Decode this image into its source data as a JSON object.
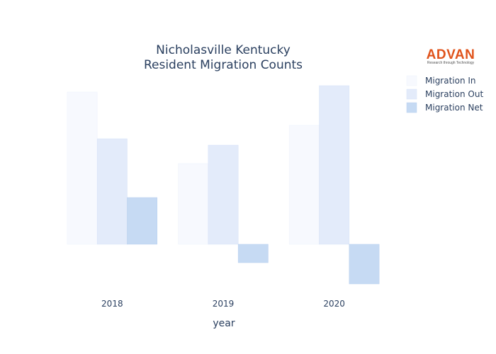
{
  "chart_data": {
    "type": "bar",
    "title_lines": [
      "Nicholasville Kentucky",
      "Resident Migration Counts"
    ],
    "xlabel": "year",
    "ylabel": "",
    "categories": [
      "2018",
      "2019",
      "2020"
    ],
    "series": [
      {
        "name": "Migration In",
        "values": [
          2150,
          1140,
          1680
        ],
        "color": "#f7f9fe",
        "stroke": "#eef2fb"
      },
      {
        "name": "Migration Out",
        "values": [
          1490,
          1400,
          2240
        ],
        "color": "#e3ebfa",
        "stroke": "#d6e2f7"
      },
      {
        "name": "Migration Net",
        "values": [
          660,
          -260,
          -560
        ],
        "color": "#c6daf3",
        "stroke": "#b9d0ef"
      }
    ],
    "ylim": [
      -600,
      2300
    ],
    "grid": false,
    "legend_position": "top-right"
  },
  "logo": {
    "text": "ADVAN",
    "tagline": "Research through Technology"
  }
}
